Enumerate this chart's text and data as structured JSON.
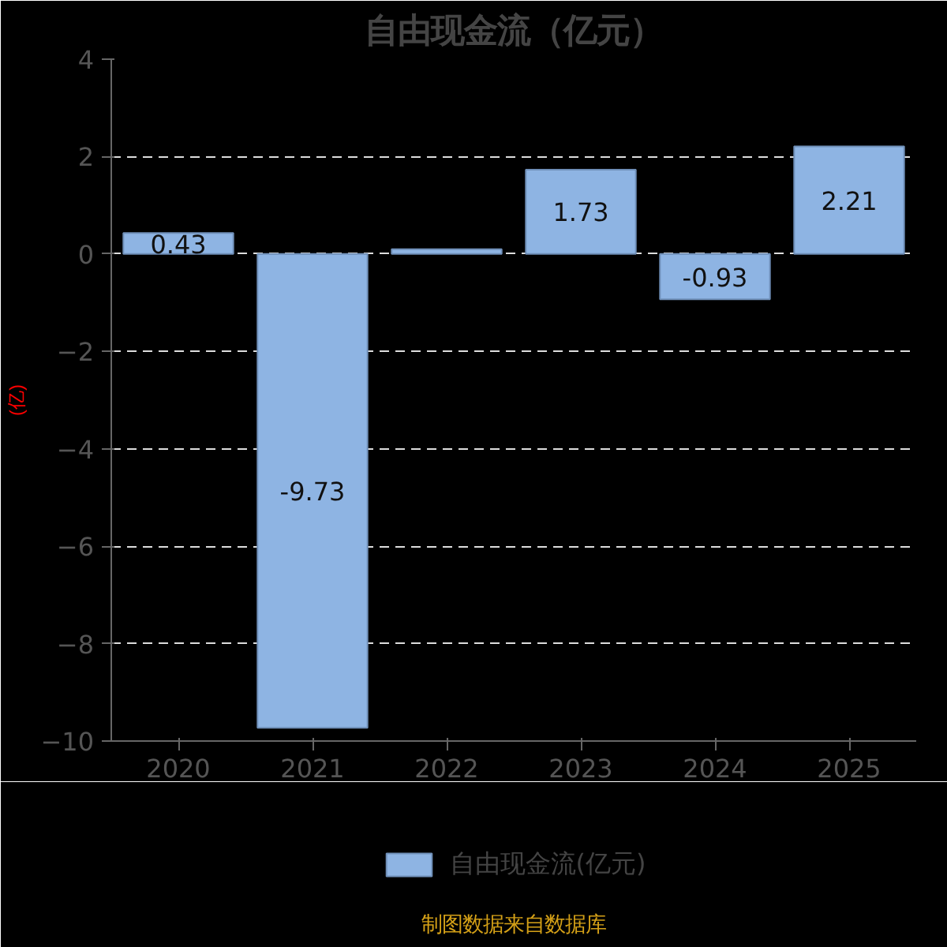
{
  "chart_data": {
    "type": "bar",
    "title": "自由现金流（亿元）",
    "ylabel": "(亿)",
    "categories": [
      "2020",
      "2021",
      "2022",
      "2023",
      "2024",
      "2025"
    ],
    "series": [
      {
        "name": "自由现金流(亿元)",
        "color": "#8eb4e3",
        "values": [
          0.43,
          -9.73,
          0.1,
          1.73,
          -0.93,
          2.21
        ],
        "value_labels": [
          "0.43",
          "-9.73",
          null,
          "1.73",
          "-0.93",
          "2.21"
        ]
      }
    ],
    "ylim": [
      -10,
      4
    ],
    "yticks": [
      -10,
      -8,
      -6,
      -4,
      -2,
      0,
      2,
      4
    ],
    "grid": "y",
    "legend": "bottom",
    "annotations": [
      "制图数据来自数据库"
    ]
  }
}
